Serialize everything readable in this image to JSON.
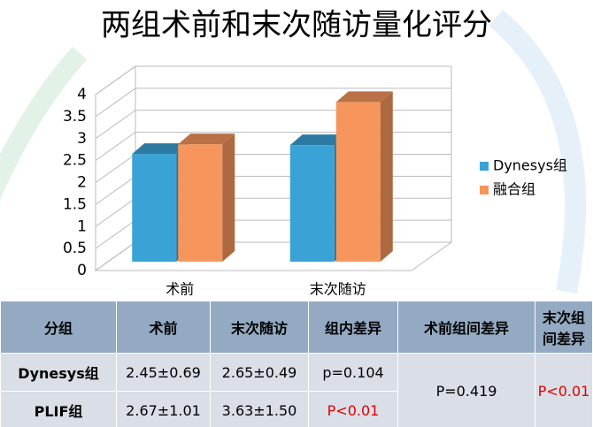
{
  "chart_data": {
    "type": "bar3d",
    "title": "两组术前和末次随访量化评分",
    "categories": [
      "术前",
      "末次随访"
    ],
    "series": [
      {
        "name": "Dynesys组",
        "color": "#3aa3d6",
        "values": [
          2.45,
          2.65
        ]
      },
      {
        "name": "融合组",
        "color": "#f7965c",
        "values": [
          2.67,
          3.63
        ]
      }
    ],
    "ylim": [
      0,
      4
    ],
    "yticks": [
      0,
      0.5,
      1,
      1.5,
      2,
      2.5,
      3,
      3.5,
      4
    ],
    "grid": true,
    "legend": "right"
  },
  "table": {
    "header": [
      "分组",
      "术前",
      "末次随访",
      "组内差异",
      "术前组间差异",
      "末次组间差异"
    ],
    "rows": [
      [
        "Dynesys组",
        "2.45±0.69",
        "2.65±0.49",
        "p=0.104"
      ],
      [
        "PLIF组",
        "2.67±1.01",
        "3.63±1.50",
        "P<0.01"
      ]
    ],
    "merged": [
      "P=0.419",
      "P<0.01"
    ]
  }
}
